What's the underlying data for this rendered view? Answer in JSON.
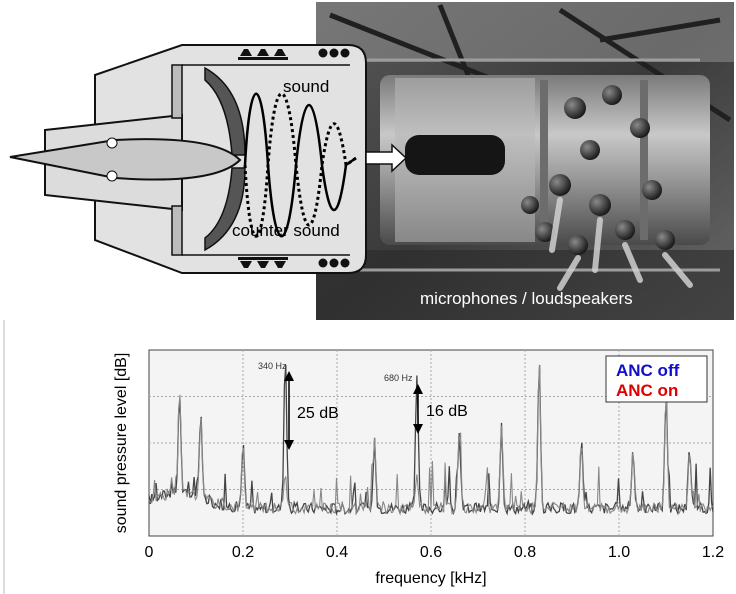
{
  "diagram": {
    "sound_label": "sound",
    "counter_sound_label": "counter sound",
    "photo_caption": "microphones / loudspeakers"
  },
  "chart_data": {
    "type": "line",
    "xlabel": "frequency [kHz]",
    "ylabel": "sound pressure level [dB]",
    "xlim": [
      0,
      1.2
    ],
    "x_ticks": [
      "0",
      "0.2",
      "0.4",
      "0.6",
      "0.8",
      "1.0",
      "1.2"
    ],
    "grid": true,
    "legend_placement": "top-right",
    "series": [
      {
        "name": "ANC off",
        "color": "#1010cc"
      },
      {
        "name": "ANC on",
        "color": "#e00000"
      }
    ],
    "peaks": [
      {
        "tag": "340 Hz",
        "x": 0.29,
        "reduction": "25 dB"
      },
      {
        "tag": "680 Hz",
        "x": 0.57,
        "reduction": "16 dB"
      }
    ]
  }
}
